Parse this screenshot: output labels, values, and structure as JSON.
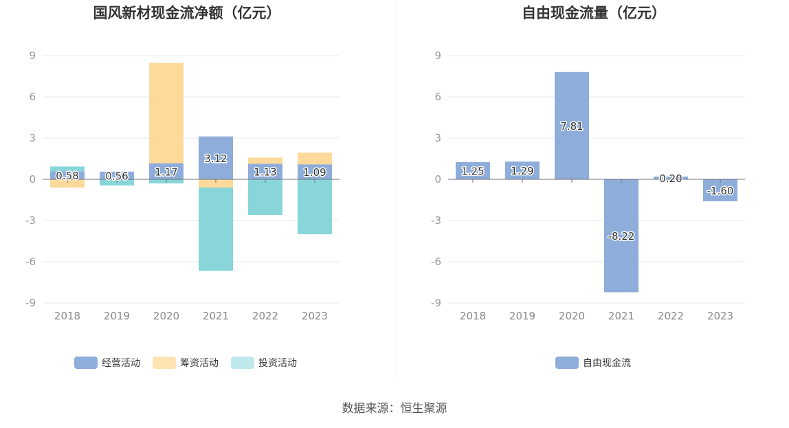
{
  "source_text": "数据来源：恒生聚源",
  "chart_data": [
    {
      "type": "bar",
      "stacked": true,
      "title": "国风新材现金流净额（亿元）",
      "categories": [
        "2018",
        "2019",
        "2020",
        "2021",
        "2022",
        "2023"
      ],
      "ylim": [
        -9,
        9
      ],
      "yticks": [
        9,
        6,
        3,
        0,
        -3,
        -6,
        -9
      ],
      "grid": true,
      "legend_position": "bottom-center",
      "series": [
        {
          "name": "经营活动",
          "color": "#8eadda",
          "values": [
            0.58,
            0.56,
            1.17,
            3.12,
            1.13,
            1.09
          ],
          "labels": [
            "0.58",
            "0.56",
            "1.17",
            "3.12",
            "1.13",
            "1.09"
          ]
        },
        {
          "name": "筹资活动",
          "color": "#fdd99a",
          "values": [
            -0.6,
            0.0,
            7.3,
            -0.6,
            0.45,
            0.85
          ]
        },
        {
          "name": "投资活动",
          "color": "#88d6da",
          "values": [
            0.35,
            -0.45,
            -0.3,
            -6.05,
            -2.6,
            -4.0
          ]
        }
      ]
    },
    {
      "type": "bar",
      "stacked": false,
      "title": "自由现金流量（亿元）",
      "categories": [
        "2018",
        "2019",
        "2020",
        "2021",
        "2022",
        "2023"
      ],
      "ylim": [
        -9,
        9
      ],
      "yticks": [
        9,
        6,
        3,
        0,
        -3,
        -6,
        -9
      ],
      "grid": true,
      "legend_position": "bottom-center",
      "series": [
        {
          "name": "自由现金流",
          "color": "#8eadda",
          "values": [
            1.25,
            1.29,
            7.81,
            -8.22,
            0.2,
            -1.6
          ],
          "labels": [
            "1.25",
            "1.29",
            "7.81",
            "-8.22",
            "0.20",
            "-1.60"
          ]
        }
      ]
    }
  ]
}
